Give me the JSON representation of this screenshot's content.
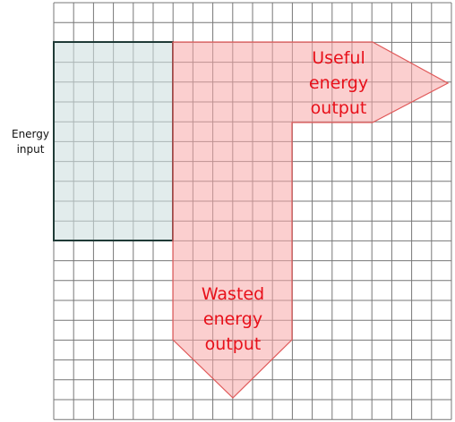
{
  "energy_input": {
    "lines": [
      "Energy",
      "input"
    ]
  },
  "useful_output": {
    "lines": [
      "Useful",
      "energy",
      "output"
    ]
  },
  "wasted_output": {
    "lines": [
      "Wasted",
      "energy",
      "output"
    ]
  }
}
